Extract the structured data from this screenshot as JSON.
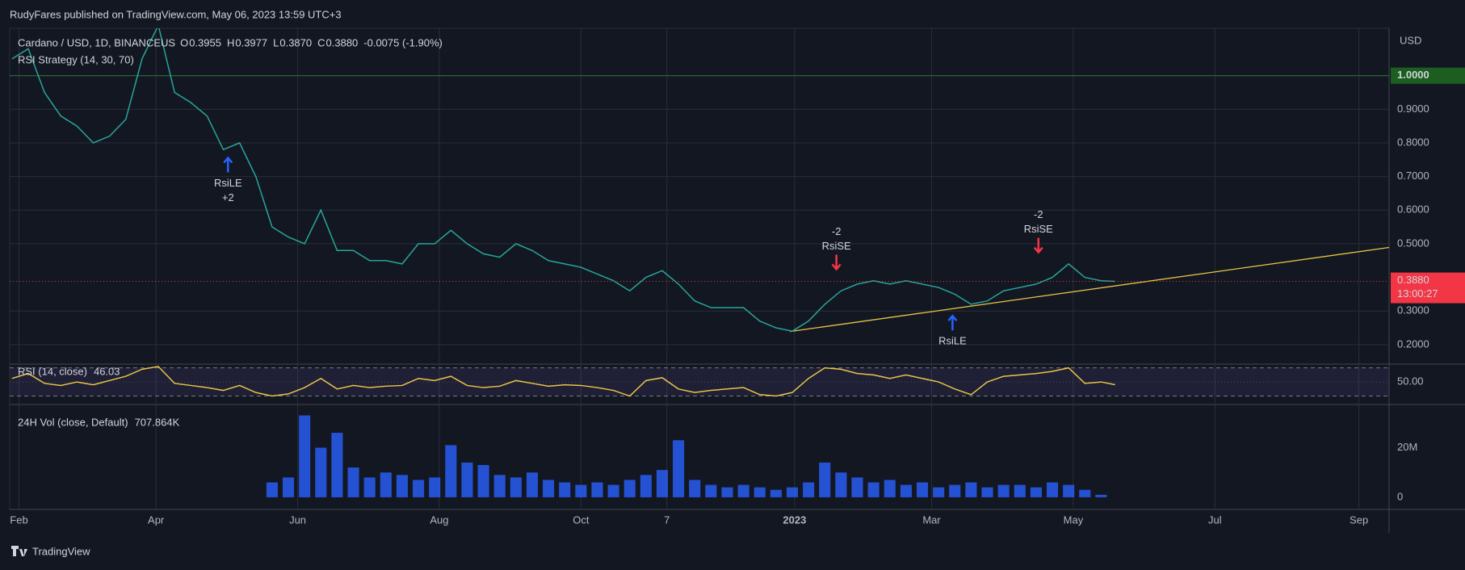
{
  "header": {
    "publisher": "RudyFares published on TradingView.com, May 06, 2023 13:59 UTC+3"
  },
  "footer": {
    "brand": "TradingView"
  },
  "chart_data": [
    {
      "type": "line",
      "title": "Cardano / USD, 1D, BINANCEUS",
      "currency": "USD",
      "strategy": "RSI Strategy (14, 30, 70)",
      "ohlc": [
        {
          "name": "O",
          "value": 0.3955
        },
        {
          "name": "H",
          "value": 0.3977
        },
        {
          "name": "L",
          "value": {
            "value": 0.387,
            "label": "0.3870"
          }
        },
        {
          "name": "C",
          "value": {
            "value": 0.388,
            "label": "0.3880"
          }
        }
      ],
      "change": "-0.0075 (-1.90%)",
      "x": [
        28,
        35,
        42,
        49,
        56,
        63,
        70,
        77,
        84,
        91,
        98,
        105,
        112,
        119,
        126,
        133,
        140,
        147,
        154,
        161,
        168,
        175,
        182,
        189,
        196,
        203,
        210,
        217,
        224,
        231,
        238,
        245,
        252,
        259,
        266,
        273,
        280,
        287,
        294,
        301,
        308,
        315,
        322,
        329,
        336,
        343,
        350,
        357,
        364,
        371,
        378,
        385,
        392,
        399,
        406,
        413,
        420,
        427,
        434,
        441,
        448,
        455,
        462,
        469,
        476,
        483,
        490,
        497,
        503
      ],
      "series": [
        {
          "name": "ADAUSD",
          "color": "#26a69a",
          "values": [
            1.05,
            1.08,
            0.95,
            0.88,
            0.85,
            0.8,
            0.82,
            0.87,
            1.05,
            1.15,
            0.95,
            0.92,
            0.88,
            0.78,
            0.8,
            0.7,
            0.55,
            0.52,
            0.5,
            0.6,
            0.48,
            0.48,
            0.45,
            0.45,
            0.44,
            0.5,
            0.5,
            0.54,
            0.5,
            0.47,
            0.46,
            0.5,
            0.48,
            0.45,
            0.44,
            0.43,
            0.41,
            0.39,
            0.36,
            0.4,
            0.42,
            0.38,
            0.33,
            0.31,
            0.31,
            0.31,
            0.27,
            0.25,
            0.24,
            0.27,
            0.32,
            0.36,
            0.38,
            0.39,
            0.38,
            0.39,
            0.38,
            0.37,
            0.35,
            0.32,
            0.33,
            0.36,
            0.37,
            0.38,
            0.4,
            0.44,
            0.4,
            0.39,
            0.388
          ]
        }
      ],
      "xlim": [
        27,
        621
      ],
      "ylim": [
        0.142,
        1.141
      ],
      "yticks": [
        {
          "value": 0.2,
          "label": "0.2000"
        },
        {
          "value": 0.3,
          "label": "0.3000"
        },
        {
          "value": 0.5,
          "label": "0.5000"
        },
        {
          "value": 0.6,
          "label": "0.6000"
        },
        {
          "value": 0.7,
          "label": "0.7000"
        },
        {
          "value": 0.8,
          "label": "0.8000"
        },
        {
          "value": 0.9,
          "label": "0.9000"
        }
      ],
      "grid": true,
      "hline": {
        "value": 1.0,
        "label": "1.0000",
        "color": "#1b5e20"
      },
      "last": {
        "value": 0.388,
        "label": "0.3880",
        "countdown": "13:00:27",
        "color": "#f23645"
      },
      "trendline": {
        "x": [
          363,
          621
        ],
        "values": [
          0.239,
          0.489
        ],
        "color": "#e8c547"
      },
      "signals": [
        {
          "x": 121,
          "y": 0.77,
          "signal": "RsiLE",
          "qty": "+2",
          "direction": "up",
          "color": "#2962ff"
        },
        {
          "x": 383,
          "y": 0.41,
          "signal": "RsiSE",
          "qty": "-2",
          "direction": "down",
          "color": "#f23645"
        },
        {
          "x": 433,
          "y": 0.3,
          "signal": "RsiLE",
          "direction": "up",
          "color": "#2962ff"
        },
        {
          "x": 470,
          "y": 0.46,
          "signal": "RsiSE",
          "qty": "-2",
          "direction": "down",
          "color": "#f23645"
        }
      ]
    },
    {
      "type": "line",
      "title": "RSI (14, close)",
      "current": 46.03,
      "x": [
        28,
        35,
        42,
        49,
        56,
        63,
        70,
        77,
        84,
        91,
        98,
        105,
        112,
        119,
        126,
        133,
        140,
        147,
        154,
        161,
        168,
        175,
        182,
        189,
        196,
        203,
        210,
        217,
        224,
        231,
        238,
        245,
        252,
        259,
        266,
        273,
        280,
        287,
        294,
        301,
        308,
        315,
        322,
        329,
        336,
        343,
        350,
        357,
        364,
        371,
        378,
        385,
        392,
        399,
        406,
        413,
        420,
        427,
        434,
        441,
        448,
        455,
        462,
        469,
        476,
        483,
        490,
        497,
        503
      ],
      "series": [
        {
          "name": "RSI",
          "color": "#e8c547",
          "values": [
            55,
            62,
            48,
            45,
            50,
            46,
            52,
            58,
            68,
            72,
            48,
            45,
            42,
            38,
            45,
            35,
            30,
            33,
            42,
            55,
            40,
            45,
            42,
            44,
            45,
            55,
            52,
            58,
            45,
            42,
            44,
            52,
            48,
            44,
            46,
            45,
            42,
            38,
            30,
            52,
            56,
            40,
            35,
            38,
            40,
            42,
            32,
            30,
            35,
            55,
            70,
            68,
            62,
            60,
            55,
            60,
            55,
            50,
            40,
            32,
            50,
            58,
            60,
            62,
            65,
            70,
            48,
            50,
            46.03
          ]
        }
      ],
      "xlim": [
        27,
        621
      ],
      "ylim": [
        18,
        75.3
      ],
      "yticks": [
        {
          "value": 50,
          "label": "50.00"
        }
      ],
      "band": [
        30,
        70
      ],
      "band_color": "#7e57c2"
    },
    {
      "type": "bar",
      "title": "24H Vol (close, Default)",
      "current": "707.864K",
      "x": [
        140,
        147,
        154,
        161,
        168,
        175,
        182,
        189,
        196,
        203,
        210,
        217,
        224,
        231,
        238,
        245,
        252,
        259,
        266,
        273,
        280,
        287,
        294,
        301,
        308,
        315,
        322,
        329,
        336,
        343,
        350,
        357,
        364,
        371,
        378,
        385,
        392,
        399,
        406,
        413,
        420,
        427,
        434,
        441,
        448,
        455,
        462,
        469,
        476,
        483,
        490,
        497
      ],
      "values": [
        6000000,
        8000000,
        33000000,
        20000000,
        26000000,
        12000000,
        8000000,
        10000000,
        9000000,
        7000000,
        8000000,
        21000000,
        14000000,
        13000000,
        9000000,
        8000000,
        10000000,
        7000000,
        6000000,
        5000000,
        6000000,
        5000000,
        7000000,
        9000000,
        11000000,
        23000000,
        7000000,
        5000000,
        4000000,
        5000000,
        4000000,
        3000000,
        4000000,
        6000000,
        14000000,
        10000000,
        8000000,
        6000000,
        7000000,
        5000000,
        6000000,
        4000000,
        5000000,
        6000000,
        4000000,
        5000000,
        5000000,
        4000000,
        6000000,
        5000000,
        3000000,
        1000000
      ],
      "color": "#2962ff",
      "xlim": [
        27,
        621
      ],
      "ylim": [
        -4900000,
        37400000
      ],
      "yticks": [
        0,
        {
          "value": 20000000,
          "label": "20M"
        }
      ],
      "xticks": [
        {
          "value": 31,
          "label": "Feb"
        },
        {
          "value": 90,
          "label": "Apr"
        },
        {
          "value": 151,
          "label": "Jun"
        },
        {
          "value": 212,
          "label": "Aug"
        },
        {
          "value": 273,
          "label": "Oct"
        },
        {
          "value": 310,
          "label": "7"
        },
        {
          "value": 365,
          "label": "2023"
        },
        {
          "value": 424,
          "label": "Mar"
        },
        {
          "value": 485,
          "label": "May"
        },
        {
          "value": 546,
          "label": "Jul"
        },
        {
          "value": 608,
          "label": "Sep"
        }
      ]
    }
  ]
}
